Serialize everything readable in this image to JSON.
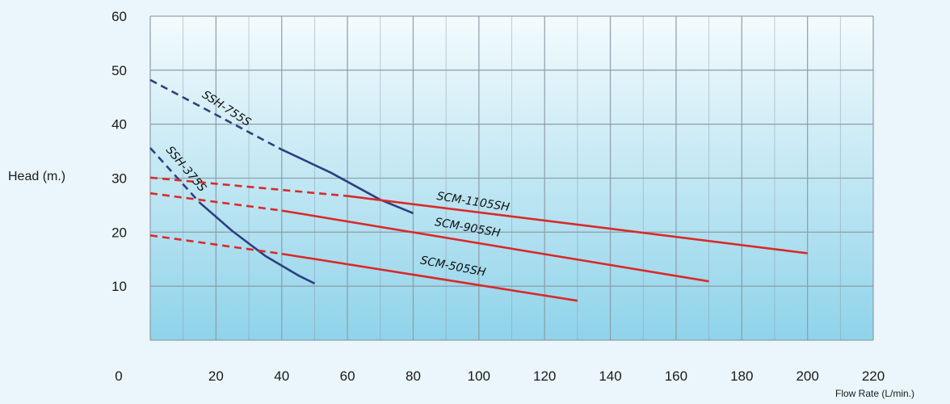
{
  "chart_data": {
    "type": "line",
    "xlabel": "Flow Rate (L/min.)",
    "ylabel": "Head (m.)",
    "xlim": [
      0,
      220
    ],
    "ylim": [
      0,
      60
    ],
    "xticks": [
      "0",
      "20",
      "40",
      "60",
      "80",
      "100",
      "120",
      "140",
      "160",
      "180",
      "200",
      "220"
    ],
    "yticks": [
      "10",
      "20",
      "30",
      "40",
      "50",
      "60"
    ],
    "grid": true,
    "colors": {
      "blue_series": "#2e3f82",
      "red_series": "#d92a2a",
      "plot_bg_top": "#f4fbfd",
      "plot_bg_bottom": "#8fd3ea",
      "grid": "#8b9aa6"
    },
    "series": [
      {
        "name": "SSH-755S",
        "color": "#2e3f82",
        "dashed": {
          "x": [
            0,
            40
          ],
          "y": [
            48.2,
            35.3
          ]
        },
        "solid": {
          "x": [
            40,
            55,
            70,
            80
          ],
          "y": [
            35.3,
            31,
            26,
            23.5
          ]
        }
      },
      {
        "name": "SSH-375S",
        "color": "#2e3f82",
        "dashed": {
          "x": [
            0,
            15
          ],
          "y": [
            35.6,
            25.5
          ]
        },
        "solid": {
          "x": [
            15,
            25,
            35,
            45,
            50
          ],
          "y": [
            25.5,
            20.2,
            15.6,
            12,
            10.5
          ]
        }
      },
      {
        "name": "SCM-1105SH",
        "color": "#d92a2a",
        "dashed": {
          "x": [
            0,
            60
          ],
          "y": [
            30.1,
            26.7
          ]
        },
        "solid": {
          "x": [
            60,
            200
          ],
          "y": [
            26.7,
            16.1
          ]
        }
      },
      {
        "name": "SCM-905SH",
        "color": "#d92a2a",
        "dashed": {
          "x": [
            0,
            40
          ],
          "y": [
            27.2,
            24
          ]
        },
        "solid": {
          "x": [
            40,
            170
          ],
          "y": [
            24,
            10.9
          ]
        }
      },
      {
        "name": "SCM-505SH",
        "color": "#d92a2a",
        "dashed": {
          "x": [
            0,
            40
          ],
          "y": [
            19.4,
            16
          ]
        },
        "solid": {
          "x": [
            40,
            130
          ],
          "y": [
            16,
            7.3
          ]
        }
      }
    ]
  }
}
